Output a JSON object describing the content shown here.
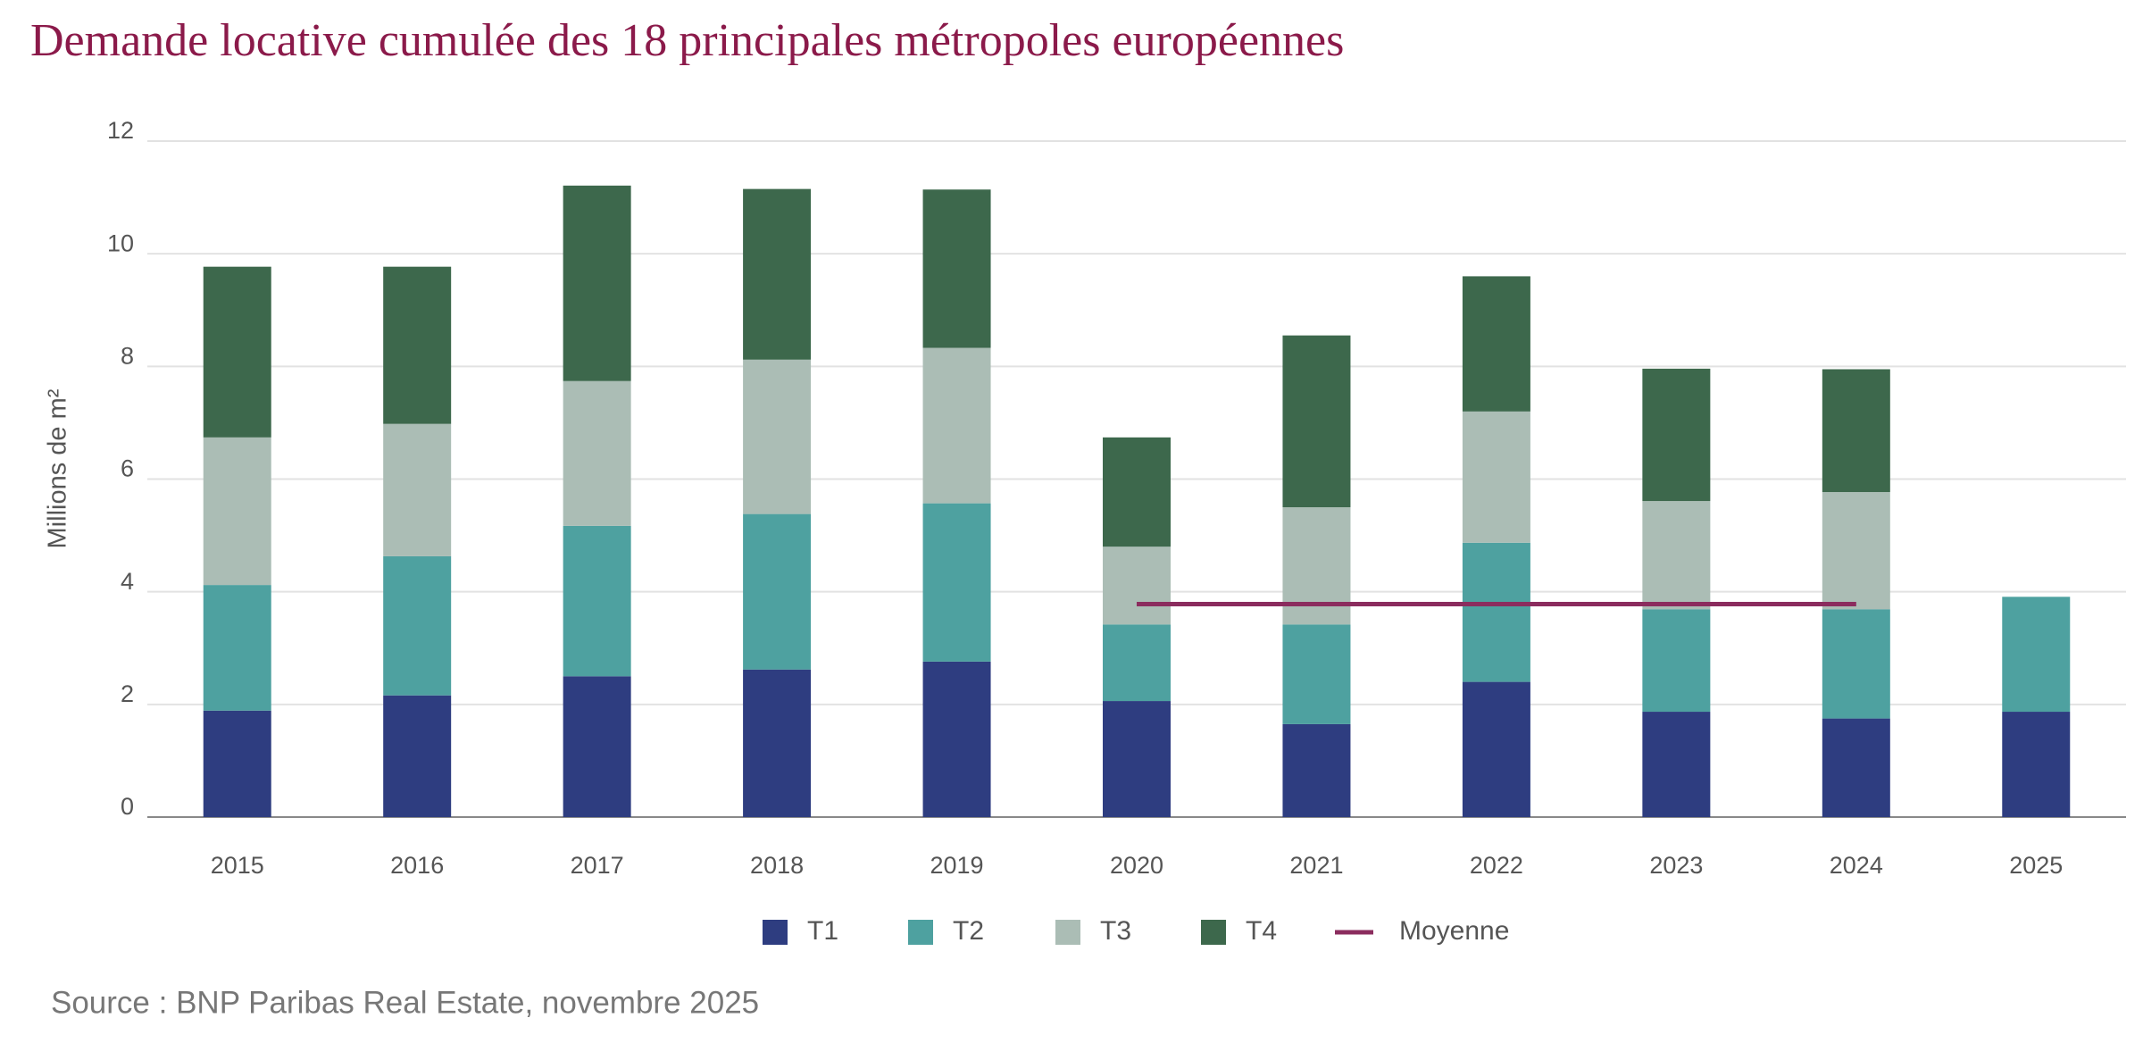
{
  "chart_data": {
    "type": "stacked-bar",
    "title": "Demande locative cumulée des 18 principales métropoles européennes",
    "y_label": "Millions de m²",
    "source": "Source : BNP Paribas Real Estate, novembre 2025",
    "categories": [
      "2015",
      "2016",
      "2017",
      "2018",
      "2019",
      "2020",
      "2021",
      "2022",
      "2023",
      "2024",
      "2025"
    ],
    "series": [
      {
        "name": "T1",
        "color": "#2e3d80",
        "values": [
          1.89,
          2.16,
          2.5,
          2.62,
          2.76,
          2.06,
          1.65,
          2.4,
          1.87,
          1.75,
          1.87
        ]
      },
      {
        "name": "T2",
        "color": "#4ea1a0",
        "values": [
          2.23,
          2.47,
          2.67,
          2.76,
          2.81,
          1.36,
          1.77,
          2.47,
          1.82,
          1.94,
          2.04
        ]
      },
      {
        "name": "T3",
        "color": "#abbdb5",
        "values": [
          2.62,
          2.35,
          2.57,
          2.74,
          2.76,
          1.38,
          2.08,
          2.33,
          1.92,
          2.08,
          null
        ]
      },
      {
        "name": "T4",
        "color": "#3d684c",
        "values": [
          3.03,
          2.79,
          3.47,
          3.03,
          2.81,
          1.94,
          3.05,
          2.4,
          2.35,
          2.18,
          null
        ]
      },
      {
        "name": "Moyenne",
        "type": "line",
        "color": "#8b2c5e",
        "values": [
          null,
          null,
          null,
          null,
          null,
          3.78,
          3.78,
          3.78,
          3.78,
          3.78,
          null
        ]
      }
    ],
    "ylim": [
      0,
      12
    ],
    "yticks": [
      0,
      2,
      4,
      6,
      8,
      10,
      12
    ],
    "grid": true,
    "legend": "bottom"
  }
}
